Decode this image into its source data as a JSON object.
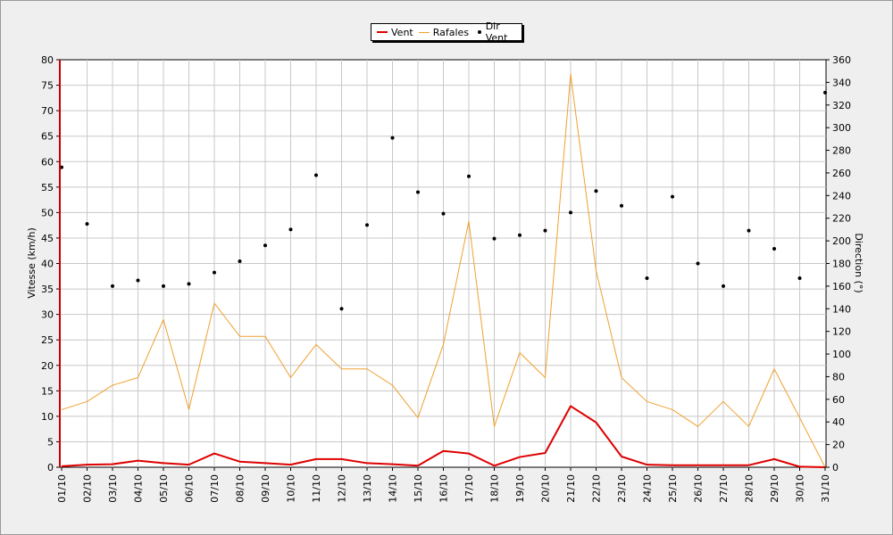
{
  "chart_data": {
    "type": "line",
    "categories": [
      "01/10",
      "02/10",
      "03/10",
      "04/10",
      "05/10",
      "06/10",
      "07/10",
      "08/10",
      "09/10",
      "10/10",
      "11/10",
      "12/10",
      "13/10",
      "14/10",
      "15/10",
      "16/10",
      "17/10",
      "18/10",
      "19/10",
      "20/10",
      "21/10",
      "22/10",
      "23/10",
      "24/10",
      "25/10",
      "26/10",
      "27/10",
      "28/10",
      "29/10",
      "30/10",
      "31/10"
    ],
    "ylabel": "Vitesse (km/h)",
    "y2label": "Direction (°)",
    "ylim": [
      0,
      80
    ],
    "y2lim": [
      0,
      360
    ],
    "yticks": [
      0,
      5,
      10,
      15,
      20,
      25,
      30,
      35,
      40,
      45,
      50,
      55,
      60,
      65,
      70,
      75,
      80
    ],
    "y2ticks": [
      0,
      20,
      40,
      60,
      80,
      100,
      120,
      140,
      160,
      180,
      200,
      220,
      240,
      260,
      280,
      300,
      320,
      340,
      360
    ],
    "grid": true,
    "legend_position": "top-center",
    "series": [
      {
        "name": "Vent",
        "kind": "line",
        "axis": "left",
        "color": "#dd0000",
        "values": [
          0.2,
          0.5,
          0.6,
          1.3,
          0.8,
          0.5,
          2.7,
          1.1,
          0.8,
          0.5,
          1.6,
          1.6,
          0.8,
          0.6,
          0.3,
          3.2,
          2.7,
          0.3,
          2.0,
          2.8,
          12.0,
          8.8,
          2.1,
          0.5,
          0.4,
          0.4,
          0.4,
          0.4,
          1.6,
          0.1,
          0.0
        ]
      },
      {
        "name": "Rafales",
        "kind": "line",
        "axis": "left",
        "color": "#f0a030",
        "values": [
          11.3,
          12.9,
          16.1,
          17.6,
          29.0,
          11.3,
          32.2,
          25.7,
          25.7,
          17.6,
          24.1,
          19.3,
          19.3,
          16.1,
          9.7,
          24.1,
          48.3,
          8.0,
          22.5,
          17.6,
          77.2,
          38.6,
          17.6,
          12.9,
          11.3,
          8.0,
          12.9,
          8.0,
          19.3,
          9.7,
          0.0
        ]
      },
      {
        "name": "Dir Vent",
        "kind": "scatter",
        "axis": "right",
        "color": "#000000",
        "values": [
          265,
          215,
          160,
          165,
          160,
          162,
          172,
          182,
          196,
          210,
          258,
          140,
          214,
          291,
          243,
          224,
          257,
          202,
          205,
          209,
          225,
          244,
          231,
          167,
          239,
          180,
          160,
          209,
          193,
          167,
          331
        ]
      }
    ]
  }
}
